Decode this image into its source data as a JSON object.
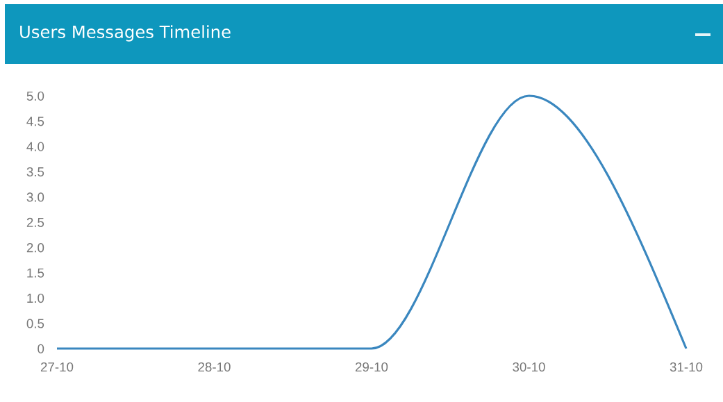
{
  "chart_data": {
    "type": "line",
    "title": "Users Messages Timeline",
    "categories": [
      "27-10",
      "28-10",
      "29-10",
      "30-10",
      "31-10"
    ],
    "series": [
      {
        "color": "#3a87bf",
        "values": [
          0,
          0,
          0,
          5,
          0
        ]
      }
    ],
    "ylim": [
      0,
      5
    ],
    "yticks": [
      0,
      0.5,
      {
        "value": 1,
        "label": "1.0"
      },
      1.5,
      {
        "value": 2,
        "label": "2.0"
      },
      2.5,
      {
        "value": 3,
        "label": "3.0"
      },
      3.5,
      {
        "value": 4,
        "label": "4.0"
      },
      4.5,
      {
        "value": 5,
        "label": "5.0"
      }
    ],
    "grid": false,
    "marker": "none",
    "line_style": "solid"
  }
}
